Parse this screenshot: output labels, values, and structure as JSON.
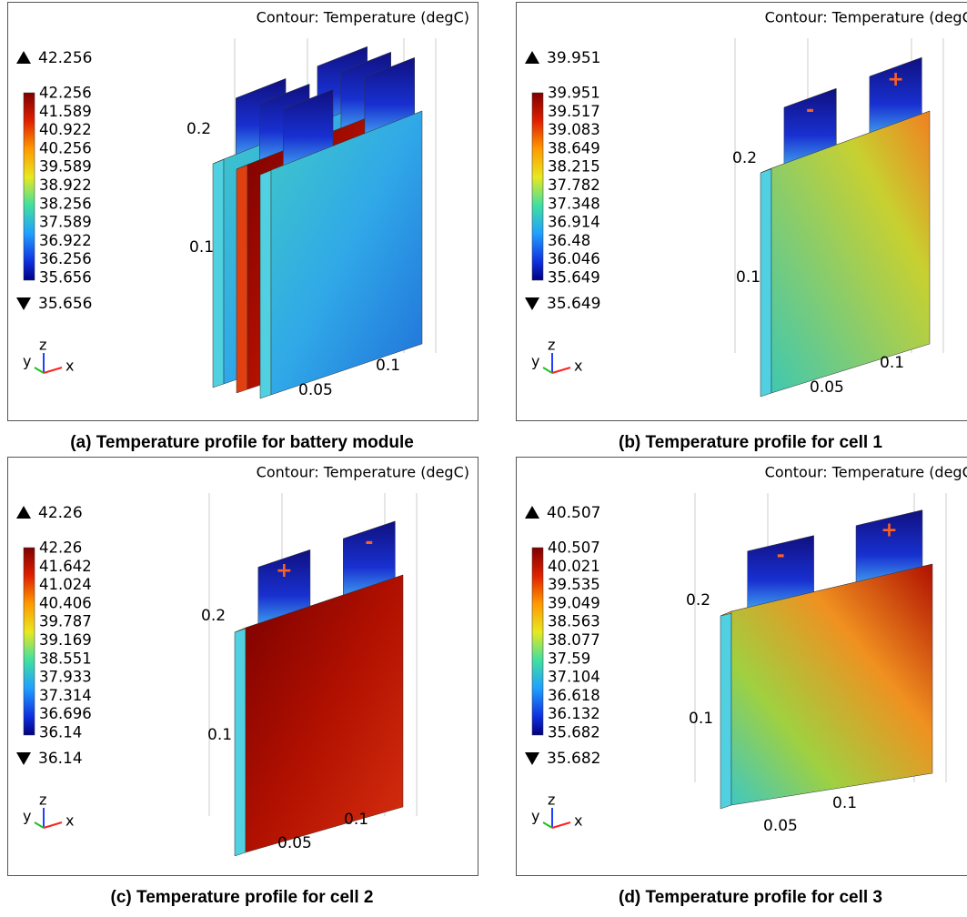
{
  "panels": [
    {
      "title": "Contour: Temperature (degC)",
      "max": 42.256,
      "min": 35.656,
      "ticks": [
        42.256,
        41.589,
        40.922,
        40.256,
        39.589,
        38.922,
        38.256,
        37.589,
        36.922,
        36.256,
        35.656
      ],
      "axis_labels": [
        "0.2",
        "0.1",
        "0.1",
        "0.05"
      ],
      "triad": [
        "y",
        "z",
        "x"
      ],
      "caption": "(a) Temperature profile for battery module"
    },
    {
      "title": "Contour: Temperature (degC)",
      "max": 39.951,
      "min": 35.649,
      "ticks": [
        39.951,
        39.517,
        39.083,
        38.649,
        38.215,
        37.782,
        37.348,
        36.914,
        36.48,
        36.046,
        35.649
      ],
      "axis_labels": [
        "0.2",
        "0.1",
        "0.1",
        "0.05"
      ],
      "tabs": [
        "-",
        "+"
      ],
      "triad": [
        "y",
        "z",
        "x"
      ],
      "caption": "(b) Temperature profile for cell 1"
    },
    {
      "title": "Contour: Temperature (degC)",
      "max": 42.26,
      "min": 36.14,
      "ticks": [
        42.26,
        41.642,
        41.024,
        40.406,
        39.787,
        39.169,
        38.551,
        37.933,
        37.314,
        36.696,
        36.14
      ],
      "axis_labels": [
        "0.2",
        "0.1",
        "0.1",
        "0.05"
      ],
      "tabs": [
        "+",
        "-"
      ],
      "triad": [
        "y",
        "z",
        "x"
      ],
      "caption": "(c) Temperature profile for cell 2"
    },
    {
      "title": "Contour: Temperature (degC)",
      "max": 40.507,
      "min": 35.682,
      "ticks": [
        40.507,
        40.021,
        39.535,
        39.049,
        38.563,
        38.077,
        37.59,
        37.104,
        36.618,
        36.132,
        35.682
      ],
      "axis_labels": [
        "0.2",
        "0.1",
        "0.1",
        "0.05"
      ],
      "tabs": [
        "-",
        "+"
      ],
      "triad": [
        "y",
        "z",
        "x"
      ],
      "caption": "(d) Temperature profile for cell 3"
    }
  ]
}
